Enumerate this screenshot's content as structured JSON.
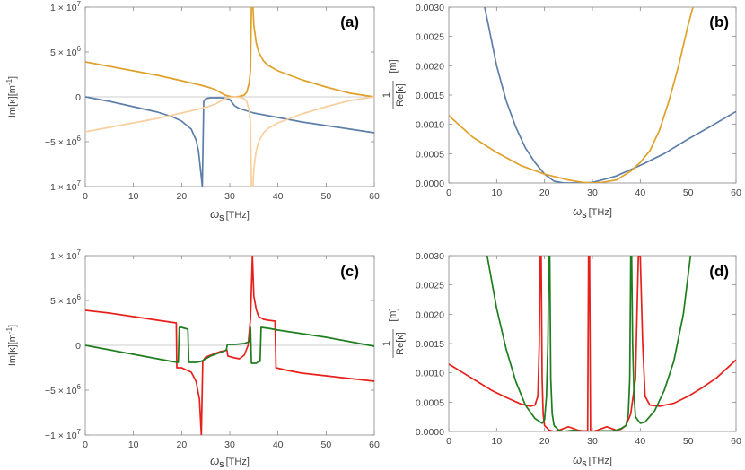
{
  "chart_data": [
    {
      "type": "line",
      "panel_label": "(a)",
      "xlabel_main": "ω",
      "xlabel_sub": "S",
      "xlabel_unit": "[THz]",
      "ylabel": "Im[κ][m",
      "ylabel_exp": "-1",
      "ylabel_close": "]",
      "xlim": [
        0,
        60
      ],
      "ylim": [
        -10000000,
        10000000
      ],
      "xticks": [
        0,
        10,
        20,
        30,
        40,
        50,
        60
      ],
      "xtick_labels": [
        "0",
        "10",
        "20",
        "30",
        "40",
        "50",
        "60"
      ],
      "yticks": [
        -10000000,
        -5000000,
        0,
        5000000,
        10000000
      ],
      "ytick_labels": [
        {
          "mant": "−1 × 10",
          "exp": "7"
        },
        {
          "mant": "−5 × 10",
          "exp": "6"
        },
        {
          "mant": "0",
          "exp": ""
        },
        {
          "mant": "5 × 10",
          "exp": "6"
        },
        {
          "mant": "1 × 10",
          "exp": "7"
        }
      ],
      "series": [
        {
          "name": "blue",
          "color": "#5d7ea8",
          "x": [
            0,
            5,
            10,
            15,
            18,
            20,
            22,
            23,
            23.5,
            24,
            24.3,
            24.6,
            25,
            26,
            27,
            28,
            29,
            30,
            31,
            32,
            35,
            40,
            45,
            50,
            55,
            60
          ],
          "y": [
            0,
            -500000,
            -1100000,
            -1700000,
            -2200000,
            -2700000,
            -3600000,
            -4800000,
            -6000000,
            -8500000,
            -10000000,
            -500000,
            -200000,
            -100000,
            -100000,
            -100000,
            -150000,
            -300000,
            -1000000,
            -1300000,
            -1800000,
            -2300000,
            -2800000,
            -3200000,
            -3600000,
            -4000000
          ]
        },
        {
          "name": "orange",
          "color": "#e0a02a",
          "x": [
            0,
            5,
            10,
            15,
            20,
            22,
            24,
            26,
            27,
            28,
            29,
            30,
            31,
            32,
            33,
            33.5,
            34,
            34.3,
            34.5,
            34.8,
            35,
            35.5,
            36,
            37,
            38,
            40,
            45,
            50,
            55,
            60
          ],
          "y": [
            3900000,
            3400000,
            2900000,
            2400000,
            1800000,
            1550000,
            1300000,
            1000000,
            800000,
            500000,
            200000,
            50000,
            0,
            50000,
            200000,
            500000,
            1500000,
            3000000,
            10000000,
            10000000,
            8000000,
            6000000,
            5000000,
            4000000,
            3500000,
            2900000,
            1900000,
            1100000,
            400000,
            0
          ]
        },
        {
          "name": "orange-light",
          "color": "#f8cf9e",
          "x": [
            0,
            5,
            10,
            15,
            20,
            22,
            24,
            26,
            27,
            28,
            29,
            30,
            31,
            32,
            33,
            33.5,
            34,
            34.3,
            34.5,
            34.8,
            35,
            35.5,
            36,
            37,
            38,
            40,
            45,
            50,
            55,
            60
          ],
          "y": [
            -3900000,
            -3400000,
            -2900000,
            -2400000,
            -1800000,
            -1550000,
            -1300000,
            -1000000,
            -800000,
            -500000,
            -200000,
            -50000,
            0,
            -50000,
            -200000,
            -500000,
            -1500000,
            -3000000,
            -10000000,
            -10000000,
            -8000000,
            -6000000,
            -5000000,
            -4000000,
            -3500000,
            -2900000,
            -1900000,
            -1100000,
            -400000,
            0
          ]
        }
      ]
    },
    {
      "type": "line",
      "panel_label": "(b)",
      "xlabel_main": "ω",
      "xlabel_sub": "S",
      "xlabel_unit": "[THz]",
      "ylabel_num": "1",
      "ylabel_den": "Re[κ]",
      "ylabel_unit": "[m]",
      "xlim": [
        0,
        60
      ],
      "ylim": [
        0,
        0.003
      ],
      "xticks": [
        0,
        10,
        20,
        30,
        40,
        50,
        60
      ],
      "xtick_labels": [
        "0",
        "10",
        "20",
        "30",
        "40",
        "50",
        "60"
      ],
      "yticks": [
        0,
        0.0005,
        0.001,
        0.0015,
        0.002,
        0.0025,
        0.003
      ],
      "ytick_labels": [
        "0.0000",
        "0.0005",
        "0.0010",
        "0.0015",
        "0.0020",
        "0.0025",
        "0.0030"
      ],
      "series": [
        {
          "name": "blue",
          "color": "#5d7ea8",
          "x": [
            7.5,
            9,
            10,
            12,
            14,
            16,
            18,
            20,
            22,
            24,
            26,
            28,
            30,
            32,
            35,
            40,
            45,
            50,
            55,
            60
          ],
          "y": [
            0.003,
            0.0024,
            0.002,
            0.0014,
            0.00095,
            0.0006,
            0.00035,
            0.00015,
            3e-05,
            0,
            0,
            0,
            1e-05,
            5e-05,
            0.00012,
            0.0003,
            0.0005,
            0.00075,
            0.00098,
            0.00122
          ]
        },
        {
          "name": "orange",
          "color": "#e0a02a",
          "x": [
            0,
            5,
            10,
            15,
            20,
            25,
            28,
            30,
            32,
            35,
            38,
            40,
            42,
            44,
            46,
            48,
            50,
            51
          ],
          "y": [
            0.00115,
            0.00078,
            0.00052,
            0.0003,
            0.00015,
            5e-05,
            1e-05,
            0,
            1e-05,
            5e-05,
            0.0002,
            0.00035,
            0.00055,
            0.0009,
            0.0014,
            0.002,
            0.0027,
            0.003
          ]
        }
      ]
    },
    {
      "type": "line",
      "panel_label": "(c)",
      "xlabel_main": "ω",
      "xlabel_sub": "S",
      "xlabel_unit": "[THz]",
      "ylabel": "Im[κ][m",
      "ylabel_exp": "-1",
      "ylabel_close": "]",
      "xlim": [
        0,
        60
      ],
      "ylim": [
        -10000000,
        10000000
      ],
      "xticks": [
        0,
        10,
        20,
        30,
        40,
        50,
        60
      ],
      "xtick_labels": [
        "0",
        "10",
        "20",
        "30",
        "40",
        "50",
        "60"
      ],
      "yticks": [
        -10000000,
        -5000000,
        0,
        5000000,
        10000000
      ],
      "ytick_labels": [
        {
          "mant": "−1 × 10",
          "exp": "7"
        },
        {
          "mant": "−5 × 10",
          "exp": "6"
        },
        {
          "mant": "0",
          "exp": ""
        },
        {
          "mant": "5 × 10",
          "exp": "6"
        },
        {
          "mant": "1 × 10",
          "exp": "7"
        }
      ],
      "series": [
        {
          "name": "red",
          "color": "#e8201c",
          "x": [
            0,
            5,
            10,
            15,
            18.9,
            19,
            20,
            22,
            23,
            23.7,
            24.1,
            24.4,
            24.7,
            25,
            26,
            27,
            28,
            29,
            29.4,
            29.6,
            31,
            32,
            33,
            33.8,
            34.3,
            34.7,
            35,
            35.5,
            36,
            37,
            38,
            39.4,
            39.6,
            42,
            45,
            50,
            55,
            60
          ],
          "y": [
            3900000,
            3600000,
            3200000,
            2800000,
            2500000,
            -2500000,
            -2500000,
            -3000000,
            -4000000,
            -6000000,
            -10000000,
            -1800000,
            -1500000,
            -1300000,
            -1100000,
            -900000,
            -700000,
            -600000,
            -500000,
            -1200000,
            -1400000,
            -1500000,
            -1100000,
            0,
            3000000,
            10000000,
            5500000,
            4000000,
            3200000,
            2900000,
            2800000,
            2700000,
            -2500000,
            -2800000,
            -3100000,
            -3400000,
            -3700000,
            -4000000
          ]
        },
        {
          "name": "green",
          "color": "#1e7d1e",
          "x": [
            0,
            5,
            10,
            15,
            18,
            19.3,
            19.5,
            20,
            21.3,
            21.5,
            23,
            24,
            25,
            26,
            27,
            28,
            29,
            29.3,
            29.5,
            31,
            33,
            34,
            34.3,
            34.5,
            35.5,
            36,
            36.3,
            36.5,
            38,
            40,
            45,
            50,
            55,
            60
          ],
          "y": [
            0,
            -500000,
            -1000000,
            -1500000,
            -1800000,
            -1900000,
            2000000,
            2000000,
            1800000,
            -1900000,
            -1900000,
            -1800000,
            -1500000,
            -1200000,
            -1000000,
            -800000,
            -600000,
            -500000,
            100000,
            100000,
            200000,
            400000,
            2000000,
            -2000000,
            -2000000,
            -1800000,
            -1800000,
            2000000,
            1900000,
            1700000,
            1300000,
            900000,
            400000,
            -100000
          ]
        }
      ]
    },
    {
      "type": "line",
      "panel_label": "(d)",
      "xlabel_main": "ω",
      "xlabel_sub": "S",
      "xlabel_unit": "[THz]",
      "ylabel_num": "1",
      "ylabel_den": "Re[κ]",
      "ylabel_unit": "[m]",
      "xlim": [
        0,
        60
      ],
      "ylim": [
        0,
        0.003
      ],
      "xticks": [
        0,
        10,
        20,
        30,
        40,
        50,
        60
      ],
      "xtick_labels": [
        "0",
        "10",
        "20",
        "30",
        "40",
        "50",
        "60"
      ],
      "yticks": [
        0,
        0.0005,
        0.001,
        0.0015,
        0.002,
        0.0025,
        0.003
      ],
      "ytick_labels": [
        "0.0000",
        "0.0005",
        "0.0010",
        "0.0015",
        "0.0020",
        "0.0025",
        "0.0030"
      ],
      "series": [
        {
          "name": "red",
          "color": "#e8201c",
          "x": [
            0,
            3,
            6,
            9,
            12,
            15,
            17,
            18,
            18.6,
            18.9,
            19.1,
            19.3,
            19.5,
            19.7,
            20,
            21,
            22,
            23,
            24,
            25,
            26,
            27,
            28,
            29,
            29.2,
            29.4,
            29.6,
            30,
            31,
            32,
            33,
            34,
            35,
            36,
            37,
            38,
            39,
            39.6,
            40,
            40.5,
            41,
            42,
            44,
            47,
            50,
            53,
            56,
            60
          ],
          "y": [
            0.00115,
            0.001,
            0.00085,
            0.0007,
            0.00058,
            0.00047,
            0.00043,
            0.00045,
            0.0006,
            0.0015,
            0.003,
            0.003,
            0.0009,
            0.0003,
            0.0001,
            2e-05,
            0,
            2e-05,
            5e-05,
            8e-05,
            5e-05,
            2e-05,
            1e-05,
            1e-05,
            0.003,
            0.003,
            1e-05,
            0,
            2e-05,
            5e-05,
            8e-05,
            5e-05,
            2e-05,
            4e-05,
            0.0001,
            0.0003,
            0.0009,
            0.003,
            0.003,
            0.0015,
            0.0006,
            0.00045,
            0.00043,
            0.00048,
            0.0006,
            0.00075,
            0.00092,
            0.00122
          ]
        },
        {
          "name": "green",
          "color": "#1e7d1e",
          "x": [
            8,
            10,
            12,
            14,
            16,
            18,
            19.5,
            20,
            20.4,
            20.7,
            20.9,
            21.1,
            21.3,
            21.6,
            22,
            23,
            24,
            25,
            26,
            27,
            28,
            29,
            30,
            31,
            32,
            33,
            34,
            35,
            36,
            37,
            37.5,
            37.8,
            38,
            38.2,
            38.4,
            38.7,
            39,
            40,
            41,
            43,
            45,
            47,
            49,
            50.5
          ],
          "y": [
            0.003,
            0.0021,
            0.0014,
            0.00085,
            0.00045,
            0.00022,
            0.00014,
            0.0002,
            0.0006,
            0.0015,
            0.003,
            0.003,
            0.0009,
            0.0003,
            0.0001,
            2e-05,
            0,
            1e-05,
            2e-05,
            1e-05,
            0,
            0,
            0,
            0,
            1e-05,
            1e-05,
            1e-05,
            2e-05,
            5e-05,
            0.0001,
            0.0003,
            0.0009,
            0.003,
            0.003,
            0.0015,
            0.0006,
            0.00025,
            0.00014,
            0.00016,
            0.00035,
            0.0007,
            0.0012,
            0.002,
            0.003
          ]
        }
      ]
    }
  ]
}
